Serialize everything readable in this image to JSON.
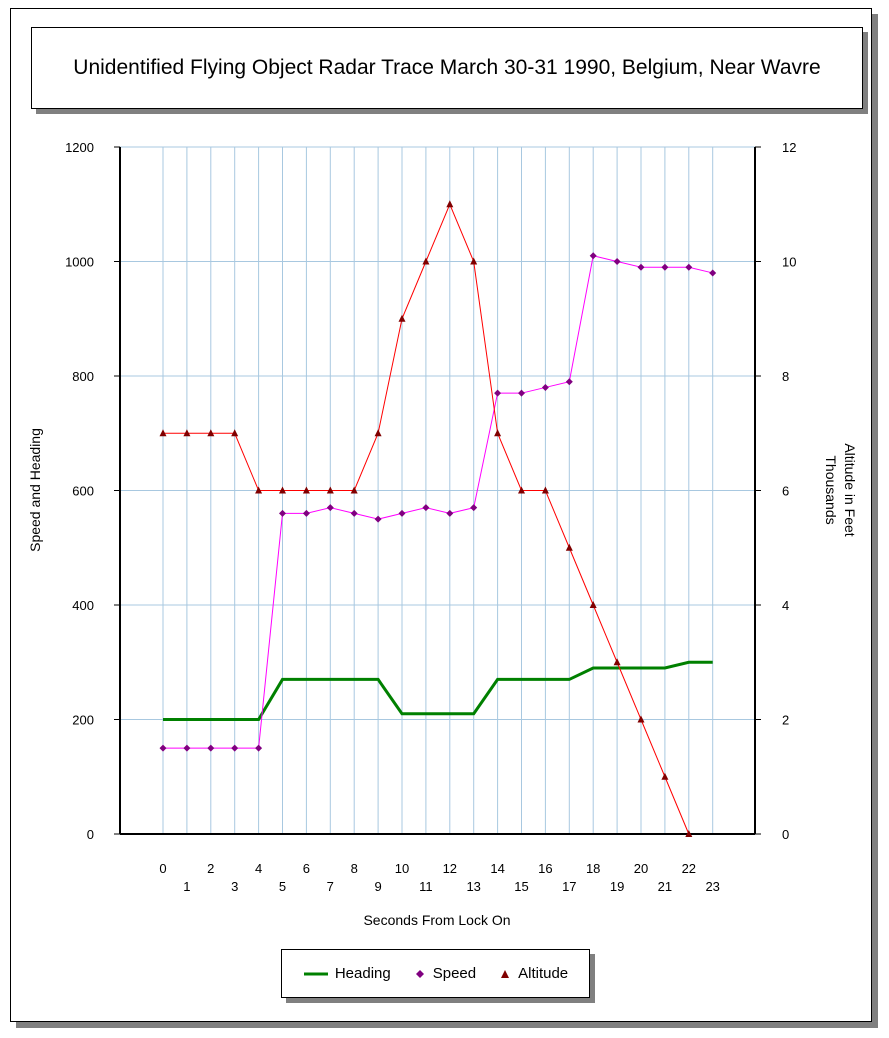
{
  "chart_data": {
    "type": "line",
    "title": "Unidentified Flying Object Radar Trace March 30-31 1990, Belgium, Near Wavre",
    "xlabel": "Seconds From Lock On",
    "ylabel": "Speed and Heading",
    "y2label_line1": "Altitude in Feet",
    "y2label_line2": "Thousands",
    "x": [
      0,
      1,
      2,
      3,
      4,
      5,
      6,
      7,
      8,
      9,
      10,
      11,
      12,
      13,
      14,
      15,
      16,
      17,
      18,
      19,
      20,
      21,
      22,
      23
    ],
    "x_tick_labels": [
      "0",
      "1",
      "2",
      "3",
      "4",
      "5",
      "6",
      "7",
      "8",
      "9",
      "10",
      "11",
      "12",
      "13",
      "14",
      "15",
      "16",
      "17",
      "18",
      "19",
      "20",
      "21",
      "22",
      "23"
    ],
    "ylim": [
      0,
      1200
    ],
    "y_ticks": [
      0,
      200,
      400,
      600,
      800,
      1000,
      1200
    ],
    "y2lim": [
      0,
      12
    ],
    "y2_ticks": [
      0,
      2,
      4,
      6,
      8,
      10,
      12
    ],
    "grid": true,
    "legend_position": "bottom",
    "series": [
      {
        "name": "Heading",
        "axis": "left",
        "color": "#008000",
        "marker": "none",
        "values": [
          200,
          200,
          200,
          200,
          200,
          270,
          270,
          270,
          270,
          270,
          210,
          210,
          210,
          210,
          270,
          270,
          270,
          270,
          290,
          290,
          290,
          290,
          300,
          300
        ]
      },
      {
        "name": "Speed",
        "axis": "left",
        "color": "#ff00ff",
        "marker": "diamond",
        "values": [
          150,
          150,
          150,
          150,
          150,
          560,
          560,
          570,
          560,
          550,
          560,
          570,
          560,
          570,
          770,
          770,
          780,
          790,
          1010,
          1000,
          990,
          990,
          990,
          980
        ]
      },
      {
        "name": "Altitude",
        "axis": "right",
        "color": "#ff0000",
        "marker": "triangle",
        "values": [
          7,
          7,
          7,
          7,
          6,
          6,
          6,
          6,
          6,
          7,
          9,
          10,
          11,
          10,
          7,
          6,
          6,
          5,
          4,
          3,
          2,
          1,
          0,
          null
        ]
      }
    ]
  }
}
